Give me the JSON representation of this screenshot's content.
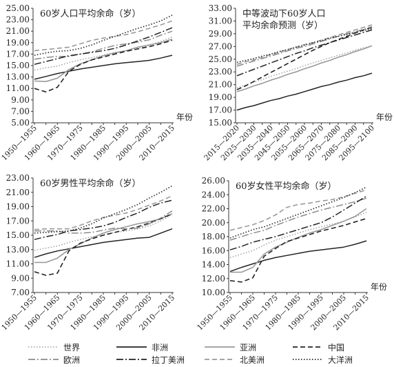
{
  "legend": [
    {
      "name": "世界",
      "color": "#9a9a9a",
      "dash": "1.5,2.5",
      "width": 1.4
    },
    {
      "name": "非洲",
      "color": "#222222",
      "dash": "",
      "width": 1.5
    },
    {
      "name": "亚洲",
      "color": "#9a9a9a",
      "dash": "",
      "width": 1.6
    },
    {
      "name": "中国",
      "color": "#222222",
      "dash": "7,4",
      "width": 1.6
    },
    {
      "name": "欧洲",
      "color": "#8a8a8a",
      "dash": "10,3,2,3",
      "width": 1.5
    },
    {
      "name": "拉丁美洲",
      "color": "#222222",
      "dash": "10,3,2,3",
      "width": 1.5
    },
    {
      "name": "北美洲",
      "color": "#9a9a9a",
      "dash": "7,4",
      "width": 1.6
    },
    {
      "name": "大洋洲",
      "color": "#222222",
      "dash": "1.5,2.5",
      "width": 1.6
    }
  ],
  "axis_unit_label": "年份",
  "chart_data": [
    {
      "type": "line",
      "title": "60岁人口平均余命（岁）",
      "xlabel": "年份",
      "ylim": [
        5,
        25
      ],
      "yticks": [
        "5.00",
        "7.00",
        "9.00",
        "11.00",
        "13.00",
        "15.00",
        "17.00",
        "19.00",
        "21.00",
        "23.00",
        "25.00"
      ],
      "x": [
        "1950—1955",
        "1955—1960",
        "1960—1965",
        "1965—1970",
        "1970—1975",
        "1975—1980",
        "1980—1985",
        "1985—1990",
        "1990—1995",
        "1995—2000",
        "2000—2005",
        "2005—2010",
        "2010—2015"
      ],
      "xtick_labels": [
        "1950—1955",
        "1960—1965",
        "1970—1975",
        "1980—1985",
        "1990—1995",
        "2000—2005",
        "2010—2015"
      ],
      "series": [
        {
          "name": "世界",
          "values": [
            14.2,
            14.6,
            14.9,
            15.5,
            16.0,
            16.4,
            16.8,
            17.3,
            17.6,
            18.0,
            18.5,
            19.2,
            20.0
          ]
        },
        {
          "name": "非洲",
          "values": [
            12.6,
            13.1,
            13.6,
            14.0,
            14.4,
            14.7,
            15.0,
            15.3,
            15.5,
            15.7,
            15.9,
            16.3,
            16.8
          ]
        },
        {
          "name": "亚洲",
          "values": [
            12.3,
            12.2,
            12.8,
            14.3,
            15.3,
            16.0,
            16.7,
            17.2,
            17.6,
            18.2,
            18.6,
            19.0,
            19.6
          ]
        },
        {
          "name": "中国",
          "values": [
            11.0,
            10.4,
            11.2,
            14.0,
            15.2,
            16.0,
            16.5,
            17.0,
            17.5,
            17.9,
            18.3,
            18.8,
            19.4
          ]
        },
        {
          "name": "欧洲",
          "values": [
            16.1,
            16.4,
            16.6,
            16.6,
            17.0,
            17.4,
            18.0,
            18.5,
            18.8,
            19.1,
            19.5,
            20.3,
            21.0
          ]
        },
        {
          "name": "拉丁美洲",
          "values": [
            15.2,
            15.7,
            16.2,
            16.7,
            17.0,
            17.3,
            17.6,
            18.0,
            18.6,
            19.3,
            20.0,
            20.8,
            21.6
          ]
        },
        {
          "name": "北美洲",
          "values": [
            17.6,
            17.8,
            18.0,
            18.2,
            18.8,
            19.4,
            19.8,
            20.1,
            20.4,
            20.9,
            21.5,
            22.1,
            22.8
          ]
        },
        {
          "name": "大洋洲",
          "values": [
            16.8,
            17.2,
            17.5,
            17.6,
            18.0,
            18.6,
            19.4,
            20.1,
            20.8,
            21.5,
            22.1,
            22.8,
            23.8
          ]
        }
      ]
    },
    {
      "type": "line",
      "title": "中等波动下60岁人口平均余命预测（岁）",
      "xlabel": "年份",
      "ylim": [
        15,
        33
      ],
      "yticks": [
        "15.00",
        "17.00",
        "19.00",
        "21.00",
        "23.00",
        "25.00",
        "27.00",
        "29.00",
        "31.00",
        "33.00"
      ],
      "x": [
        "2015—2020",
        "2020—2025",
        "2025—2030",
        "2030—2035",
        "2035—2040",
        "2040—2045",
        "2045—2050",
        "2050—2055",
        "2055—2060",
        "2060—2065",
        "2065—2070",
        "2070—2075",
        "2075—2080",
        "2080—2085",
        "2085—2090",
        "2090—2095",
        "2095—2100"
      ],
      "xtick_labels": [
        "2015—2020",
        "2025—2030",
        "2035—2040",
        "2045—2050",
        "2055—2060",
        "2065—2070",
        "2075—2080",
        "2085—2090",
        "2095—2100"
      ],
      "series": [
        {
          "name": "世界",
          "values": [
            20.5,
            20.9,
            21.4,
            21.8,
            22.3,
            22.7,
            23.1,
            23.5,
            24.0,
            24.4,
            24.8,
            25.2,
            25.6,
            26.0,
            26.4,
            26.8,
            27.1
          ]
        },
        {
          "name": "非洲",
          "values": [
            17.0,
            17.4,
            17.7,
            18.1,
            18.5,
            18.8,
            19.2,
            19.5,
            19.9,
            20.3,
            20.7,
            21.0,
            21.4,
            21.7,
            22.1,
            22.4,
            22.8
          ]
        },
        {
          "name": "亚洲",
          "values": [
            19.9,
            20.3,
            20.8,
            21.2,
            21.7,
            22.1,
            22.6,
            23.0,
            23.5,
            23.9,
            24.4,
            24.8,
            25.3,
            25.7,
            26.2,
            26.6,
            27.1
          ]
        },
        {
          "name": "中国",
          "values": [
            20.2,
            20.8,
            21.5,
            22.2,
            22.9,
            23.6,
            24.3,
            25.0,
            25.7,
            26.4,
            27.0,
            27.6,
            28.1,
            28.6,
            29.1,
            29.6,
            30.0
          ]
        },
        {
          "name": "欧洲",
          "values": [
            23.9,
            24.3,
            24.7,
            25.1,
            25.5,
            25.9,
            26.3,
            26.7,
            27.0,
            27.4,
            27.8,
            28.2,
            28.6,
            29.0,
            29.3,
            29.7,
            30.1
          ]
        },
        {
          "name": "拉丁美洲",
          "values": [
            22.4,
            22.9,
            23.4,
            23.9,
            24.4,
            24.9,
            25.4,
            25.9,
            26.3,
            26.8,
            27.2,
            27.6,
            28.0,
            28.4,
            28.8,
            29.2,
            29.6
          ]
        },
        {
          "name": "北美洲",
          "values": [
            24.2,
            24.6,
            24.9,
            25.3,
            25.7,
            26.1,
            26.5,
            26.9,
            27.3,
            27.6,
            28.0,
            28.4,
            28.8,
            29.2,
            29.6,
            30.0,
            30.4
          ]
        },
        {
          "name": "大洋洲",
          "values": [
            24.5,
            24.8,
            25.1,
            25.5,
            25.8,
            26.2,
            26.5,
            26.9,
            27.2,
            27.6,
            27.9,
            28.3,
            28.6,
            28.9,
            29.2,
            29.5,
            29.8
          ]
        }
      ]
    },
    {
      "type": "line",
      "title": "60岁男性平均余命（岁）",
      "xlabel": "",
      "ylim": [
        7,
        23
      ],
      "yticks": [
        "7.00",
        "9.00",
        "11.00",
        "13.00",
        "15.00",
        "17.00",
        "19.00",
        "21.00",
        "23.00"
      ],
      "x": [
        "1950—1955",
        "1955—1960",
        "1960—1965",
        "1965—1970",
        "1970—1975",
        "1975—1980",
        "1980—1985",
        "1985—1990",
        "1990—1995",
        "1995—2000",
        "2000—2005",
        "2005—2010",
        "2010—2015"
      ],
      "xtick_labels": [
        "1950—1955",
        "1960—1965",
        "1970—1975",
        "1980—1985",
        "1990—1995",
        "2000—2005",
        "2010—2015"
      ],
      "series": [
        {
          "name": "世界",
          "values": [
            12.9,
            13.2,
            13.5,
            14.0,
            14.4,
            14.8,
            15.1,
            15.4,
            15.6,
            15.9,
            16.3,
            17.0,
            17.9
          ]
        },
        {
          "name": "非洲",
          "values": [
            11.9,
            12.4,
            12.8,
            13.1,
            13.4,
            13.7,
            14.0,
            14.2,
            14.4,
            14.6,
            14.7,
            15.3,
            15.9
          ]
        },
        {
          "name": "亚洲",
          "values": [
            11.2,
            11.2,
            11.8,
            13.0,
            13.8,
            14.6,
            15.3,
            15.8,
            16.2,
            16.6,
            16.9,
            17.3,
            18.0
          ]
        },
        {
          "name": "中国",
          "values": [
            9.9,
            9.4,
            9.7,
            12.8,
            13.9,
            14.5,
            15.0,
            15.4,
            15.8,
            16.2,
            16.7,
            17.3,
            18.0
          ]
        },
        {
          "name": "欧洲",
          "values": [
            15.6,
            15.6,
            15.6,
            15.3,
            15.3,
            15.4,
            15.7,
            16.0,
            15.9,
            16.0,
            16.6,
            17.4,
            18.4
          ]
        },
        {
          "name": "拉丁美洲",
          "values": [
            14.4,
            14.8,
            15.1,
            15.6,
            15.8,
            16.0,
            16.3,
            16.8,
            17.5,
            18.1,
            18.9,
            19.5,
            19.9
          ]
        },
        {
          "name": "北美洲",
          "values": [
            15.8,
            15.9,
            15.9,
            15.9,
            16.4,
            17.0,
            17.5,
            17.8,
            18.1,
            18.6,
            19.2,
            19.8,
            20.5
          ]
        },
        {
          "name": "大洋洲",
          "values": [
            15.3,
            15.4,
            15.5,
            15.6,
            16.0,
            16.6,
            17.4,
            18.0,
            18.6,
            19.3,
            20.2,
            21.0,
            21.9
          ]
        }
      ]
    },
    {
      "type": "line",
      "title": "60岁女性平均余命（岁）",
      "xlabel": "年份",
      "ylim": [
        10,
        26
      ],
      "yticks": [
        "10.00",
        "12.00",
        "14.00",
        "16.00",
        "18.00",
        "20.00",
        "22.00",
        "24.00",
        "26.00"
      ],
      "x": [
        "1950—1955",
        "1955—1960",
        "1960—1965",
        "1965—1970",
        "1970—1975",
        "1975—1980",
        "1980—1985",
        "1985—1990",
        "1990—1995",
        "1995—2000",
        "2000—2005",
        "2005—2010",
        "2010—2015"
      ],
      "xtick_labels": [
        "1950—1955",
        "1960—1965",
        "1970—1975",
        "1980—1985",
        "1990—1995",
        "2000—2005",
        "2010—2015"
      ],
      "series": [
        {
          "name": "世界",
          "values": [
            15.0,
            15.5,
            16.0,
            16.8,
            17.5,
            18.0,
            18.5,
            19.0,
            19.4,
            19.8,
            20.2,
            20.8,
            21.5
          ]
        },
        {
          "name": "非洲",
          "values": [
            13.0,
            13.6,
            14.1,
            14.6,
            15.0,
            15.3,
            15.6,
            15.9,
            16.1,
            16.3,
            16.5,
            16.9,
            17.4
          ]
        },
        {
          "name": "亚洲",
          "values": [
            12.9,
            12.9,
            13.6,
            15.5,
            16.5,
            17.2,
            17.9,
            18.5,
            19.0,
            19.6,
            20.2,
            20.9,
            22.0
          ]
        },
        {
          "name": "中国",
          "values": [
            11.7,
            11.5,
            12.1,
            15.2,
            16.3,
            17.3,
            17.8,
            18.3,
            18.8,
            19.2,
            19.6,
            20.1,
            20.6
          ]
        },
        {
          "name": "欧洲",
          "values": [
            17.5,
            18.0,
            18.5,
            18.9,
            19.6,
            20.2,
            20.8,
            21.3,
            21.8,
            22.2,
            22.6,
            23.0,
            23.5
          ]
        },
        {
          "name": "拉丁美洲",
          "values": [
            16.1,
            16.6,
            17.2,
            17.6,
            18.0,
            18.5,
            19.0,
            19.5,
            20.0,
            20.8,
            21.8,
            22.8,
            23.8
          ]
        },
        {
          "name": "北美洲",
          "values": [
            18.9,
            19.3,
            19.7,
            20.3,
            21.1,
            22.2,
            22.6,
            22.8,
            23.1,
            23.3,
            23.7,
            24.2,
            24.7
          ]
        },
        {
          "name": "大洋洲",
          "values": [
            17.8,
            18.4,
            19.0,
            19.4,
            20.0,
            20.6,
            21.2,
            21.8,
            22.4,
            23.0,
            23.6,
            24.3,
            25.1
          ]
        }
      ]
    }
  ]
}
